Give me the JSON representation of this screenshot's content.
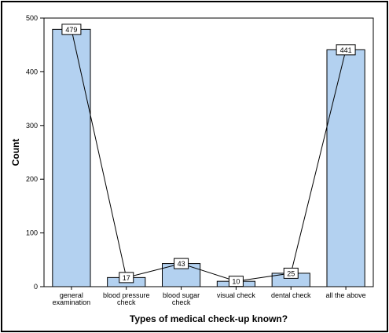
{
  "chart_data": {
    "type": "bar",
    "categories": [
      [
        "general",
        "examination"
      ],
      [
        "blood pressure",
        "check"
      ],
      [
        "blood sugar",
        "check"
      ],
      [
        "visual check"
      ],
      [
        "dental check"
      ],
      [
        "all the above"
      ]
    ],
    "values": [
      479,
      17,
      43,
      10,
      25,
      441
    ],
    "data_labels": [
      "479",
      "17",
      "43",
      "10",
      "25",
      "441"
    ],
    "xlabel": "Types of medical check-up known?",
    "ylabel": "Count",
    "ylim": [
      0,
      500
    ],
    "yticks": [
      0,
      100,
      200,
      300,
      400,
      500
    ],
    "overlay": "line connecting bar tops",
    "grid": false,
    "colors": {
      "bar_fill": "#b3d1f0",
      "bar_stroke": "#000000",
      "line": "#000000",
      "background": "#ffffff"
    }
  }
}
